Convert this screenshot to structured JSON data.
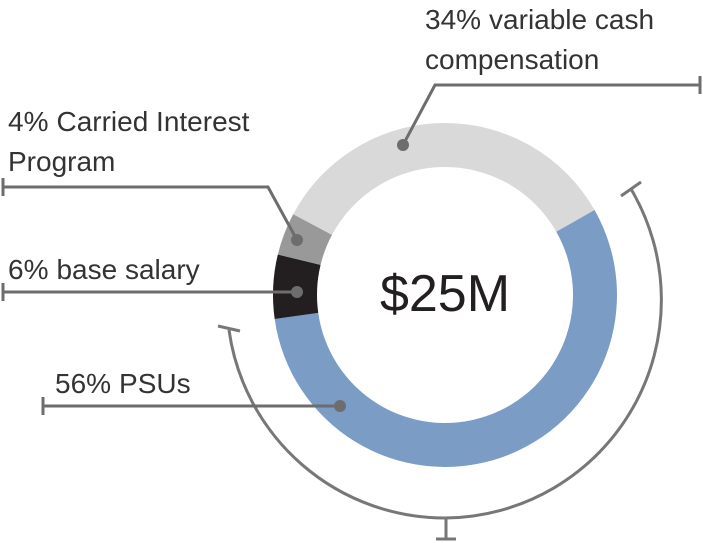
{
  "chart_data": {
    "type": "pie",
    "center_label": "$25M",
    "categories": [
      "variable cash compensation",
      "PSUs",
      "base salary",
      "Carried Interest Program"
    ],
    "values": [
      34,
      56,
      6,
      4
    ],
    "value_labels": [
      "34%",
      "56%",
      "6%",
      "4%"
    ],
    "colors": [
      "#d9d9d9",
      "#7b9cc4",
      "#231f20",
      "#999999"
    ]
  }
}
